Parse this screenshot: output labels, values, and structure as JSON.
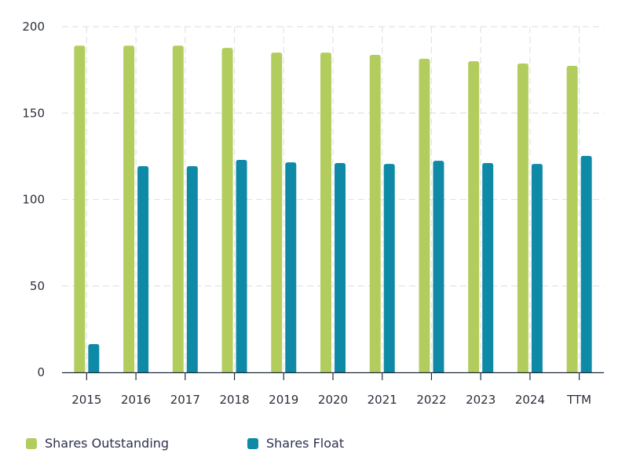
{
  "chart_data": {
    "type": "bar",
    "title": "",
    "xlabel": "",
    "ylabel": "",
    "categories": [
      "2015",
      "2016",
      "2017",
      "2018",
      "2019",
      "2020",
      "2021",
      "2022",
      "2023",
      "2024",
      "TTM"
    ],
    "series": [
      {
        "name": "Shares Outstanding",
        "color": "#b2cd5e",
        "values": [
          189,
          189,
          189,
          187.7,
          185,
          185,
          183.7,
          181.4,
          180,
          178.7,
          177.3
        ]
      },
      {
        "name": "Shares Float",
        "color": "#0e8aa6",
        "values": [
          16.3,
          119.3,
          119.3,
          122.9,
          121.5,
          121.1,
          120.6,
          122.4,
          121.1,
          120.6,
          125.2
        ]
      }
    ],
    "ylim": [
      0,
      200
    ],
    "yticks": [
      "0",
      "50",
      "100",
      "150",
      "200"
    ],
    "grid": true,
    "legend_position": "bottom-left"
  },
  "legend": {
    "items": [
      {
        "label": "Shares Outstanding",
        "color": "#b2cd5e"
      },
      {
        "label": "Shares Float",
        "color": "#0e8aa6"
      }
    ]
  }
}
